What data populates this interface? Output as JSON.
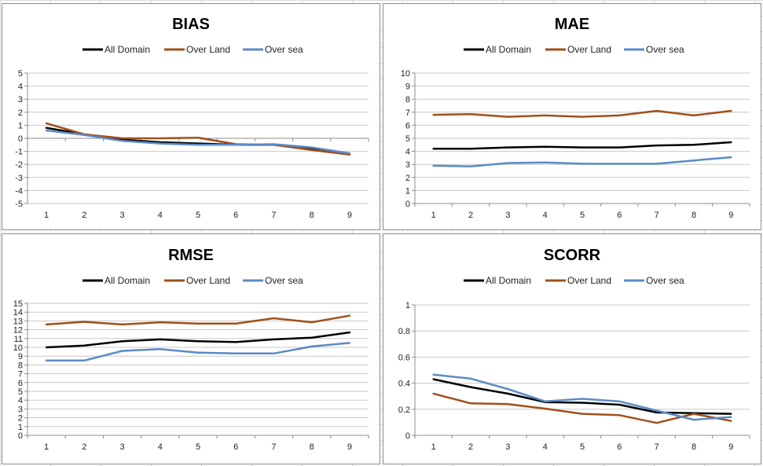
{
  "legend": [
    "All Domain",
    "Over Land",
    "Over sea"
  ],
  "colors": {
    "All Domain": "#000000",
    "Over Land": "#a0501a",
    "Over sea": "#5b8ac6"
  },
  "chart_data": [
    {
      "type": "line",
      "title": "BIAS",
      "x": [
        1,
        2,
        3,
        4,
        5,
        6,
        7,
        8,
        9
      ],
      "ylim": [
        -5,
        5
      ],
      "yticks": [
        5,
        4,
        3,
        2,
        1,
        0,
        -1,
        -2,
        -3,
        -4,
        -5
      ],
      "ytick_labels": [
        "5",
        "4",
        "3",
        "2",
        "1",
        "0",
        "-1",
        "-2",
        "-3",
        "-4",
        "-5"
      ],
      "gridlines": [
        -5,
        -4,
        -3,
        -2,
        -1,
        1,
        2,
        3,
        4,
        5
      ],
      "xaxis_at": 0,
      "series": [
        {
          "name": "All Domain",
          "values": [
            0.8,
            0.3,
            -0.1,
            -0.3,
            -0.4,
            -0.5,
            -0.5,
            -0.8,
            -1.2
          ]
        },
        {
          "name": "Over Land",
          "values": [
            1.15,
            0.3,
            0.0,
            0.0,
            0.05,
            -0.45,
            -0.5,
            -0.9,
            -1.25
          ]
        },
        {
          "name": "Over sea",
          "values": [
            0.6,
            0.25,
            -0.2,
            -0.4,
            -0.5,
            -0.5,
            -0.45,
            -0.7,
            -1.15
          ]
        }
      ]
    },
    {
      "type": "line",
      "title": "MAE",
      "x": [
        1,
        2,
        3,
        4,
        5,
        6,
        7,
        8,
        9
      ],
      "ylim": [
        0,
        10
      ],
      "yticks": [
        10,
        9,
        8,
        7,
        6,
        5,
        4,
        3,
        2,
        1,
        0
      ],
      "ytick_labels": [
        "10",
        "9",
        "8",
        "7",
        "6",
        "5",
        "4",
        "3",
        "2",
        "1",
        "0"
      ],
      "gridlines": [
        0,
        1,
        2,
        3,
        4,
        5,
        6,
        7,
        8,
        9,
        10
      ],
      "xaxis_at": 0,
      "series": [
        {
          "name": "All Domain",
          "values": [
            4.2,
            4.2,
            4.3,
            4.35,
            4.3,
            4.3,
            4.45,
            4.5,
            4.7
          ]
        },
        {
          "name": "Over Land",
          "values": [
            6.8,
            6.85,
            6.65,
            6.75,
            6.65,
            6.75,
            7.1,
            6.75,
            7.1
          ]
        },
        {
          "name": "Over sea",
          "values": [
            2.9,
            2.85,
            3.1,
            3.15,
            3.05,
            3.05,
            3.05,
            3.3,
            3.55
          ]
        }
      ]
    },
    {
      "type": "line",
      "title": "RMSE",
      "x": [
        1,
        2,
        3,
        4,
        5,
        6,
        7,
        8,
        9
      ],
      "ylim": [
        0,
        15
      ],
      "yticks": [
        15,
        14,
        13,
        12,
        11,
        10,
        9,
        8,
        7,
        6,
        5,
        4,
        3,
        2,
        1,
        0
      ],
      "ytick_labels": [
        "15",
        "14",
        "13",
        "12",
        "11",
        "10",
        "9",
        "8",
        "7",
        "6",
        "5",
        "4",
        "3",
        "2",
        "1",
        "0"
      ],
      "gridlines": [
        0,
        1,
        2,
        3,
        4,
        5,
        6,
        7,
        8,
        9,
        10,
        11,
        12,
        13,
        14,
        15
      ],
      "xaxis_at": 0,
      "series": [
        {
          "name": "All Domain",
          "values": [
            10.0,
            10.2,
            10.7,
            10.9,
            10.7,
            10.6,
            10.9,
            11.1,
            11.7
          ]
        },
        {
          "name": "Over Land",
          "values": [
            12.6,
            12.9,
            12.6,
            12.85,
            12.7,
            12.7,
            13.3,
            12.85,
            13.6
          ]
        },
        {
          "name": "Over sea",
          "values": [
            8.5,
            8.5,
            9.6,
            9.8,
            9.4,
            9.3,
            9.3,
            10.1,
            10.5
          ]
        }
      ]
    },
    {
      "type": "line",
      "title": "SCORR",
      "x": [
        1,
        2,
        3,
        4,
        5,
        6,
        7,
        8,
        9
      ],
      "ylim": [
        0,
        1
      ],
      "yticks": [
        1,
        0.8,
        0.6,
        0.4,
        0.2,
        0
      ],
      "ytick_labels": [
        "1",
        "0.8",
        "0.6",
        "0.4",
        "0.2",
        "0"
      ],
      "gridlines": [
        0,
        0.2,
        0.4,
        0.6,
        0.8,
        1
      ],
      "xaxis_at": 0,
      "series": [
        {
          "name": "All Domain",
          "values": [
            0.43,
            0.37,
            0.32,
            0.255,
            0.25,
            0.235,
            0.175,
            0.17,
            0.165
          ]
        },
        {
          "name": "Over Land",
          "values": [
            0.32,
            0.245,
            0.24,
            0.205,
            0.165,
            0.155,
            0.095,
            0.165,
            0.11
          ]
        },
        {
          "name": "Over sea",
          "values": [
            0.465,
            0.435,
            0.355,
            0.26,
            0.28,
            0.26,
            0.19,
            0.12,
            0.14
          ]
        }
      ]
    }
  ]
}
